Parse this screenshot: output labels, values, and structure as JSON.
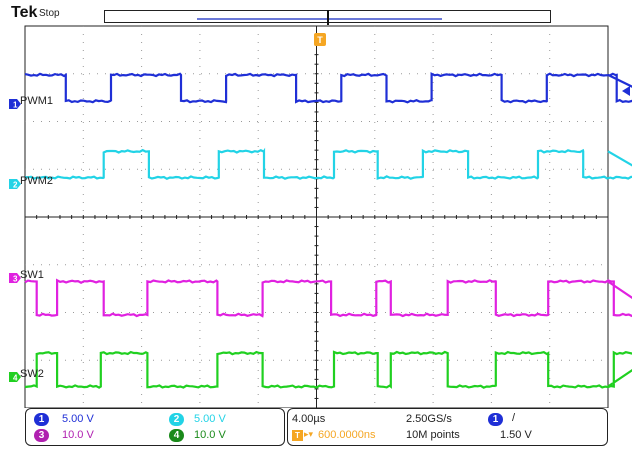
{
  "header": {
    "brand": "Tek",
    "acq_status": "Stop",
    "trigger_marker": "T"
  },
  "channels": [
    {
      "id": "1",
      "label": "PWM1",
      "color": "#1f2fd6"
    },
    {
      "id": "2",
      "label": "PWM2",
      "color": "#22d3e6"
    },
    {
      "id": "3",
      "label": "SW1",
      "color": "#e021e0"
    },
    {
      "id": "4",
      "label": "SW2",
      "color": "#20d020"
    }
  ],
  "readout": {
    "ch1_scale": "5.00 V",
    "ch2_scale": "5.00 V",
    "ch3_scale": "10.0 V",
    "ch4_scale": "10.0 V",
    "ch1_badge": "1",
    "ch2_badge": "2",
    "ch3_badge": "3",
    "ch4_badge": "4",
    "timebase": "4.00µs",
    "sample_rate": "2.50GS/s",
    "position": "600.0000ns",
    "record_length": "10M points",
    "trigger_source": "1",
    "trigger_slope": "/",
    "trigger_level": "1.50 V"
  },
  "chart_data": {
    "type": "line",
    "title": "",
    "xlabel": "",
    "ylabel": "",
    "grid": true,
    "divisions_x": 10,
    "divisions_y": 8,
    "time_per_div_us": 4.0,
    "series": [
      {
        "name": "PWM1",
        "color": "#1f2fd6",
        "vertical_offset_div": 2.7,
        "amplitude_div": 0.55,
        "transitions_us": [
          2.8,
          5.9,
          10.7,
          13.8,
          18.6,
          21.7,
          24.8,
          27.9,
          32.7,
          35.8,
          40.6,
          43.7
        ],
        "initial_level": "high"
      },
      {
        "name": "PWM2",
        "color": "#22d3e6",
        "vertical_offset_div": 1.1,
        "amplitude_div": 0.55,
        "transitions_us": [
          5.4,
          8.5,
          13.3,
          16.4,
          21.2,
          24.2,
          27.3,
          30.4,
          35.2,
          38.3,
          43.1
        ],
        "initial_level": "low"
      },
      {
        "name": "SW1",
        "color": "#e021e0",
        "vertical_offset_div": -1.7,
        "amplitude_div": 0.7,
        "transitions_us": [
          0.8,
          2.2,
          5.4,
          8.4,
          13.2,
          16.3,
          21.0,
          24.1,
          25.1,
          29.0,
          32.3,
          35.9,
          40.4,
          43.4
        ],
        "initial_level": "high"
      },
      {
        "name": "SW2",
        "color": "#20d020",
        "vertical_offset_div": -3.2,
        "amplitude_div": 0.7,
        "transitions_us": [
          0.8,
          2.2,
          5.2,
          8.4,
          13.2,
          16.3,
          21.2,
          24.2,
          25.1,
          29.0,
          32.3,
          35.9,
          40.4,
          43.4
        ],
        "initial_level": "low"
      }
    ]
  }
}
